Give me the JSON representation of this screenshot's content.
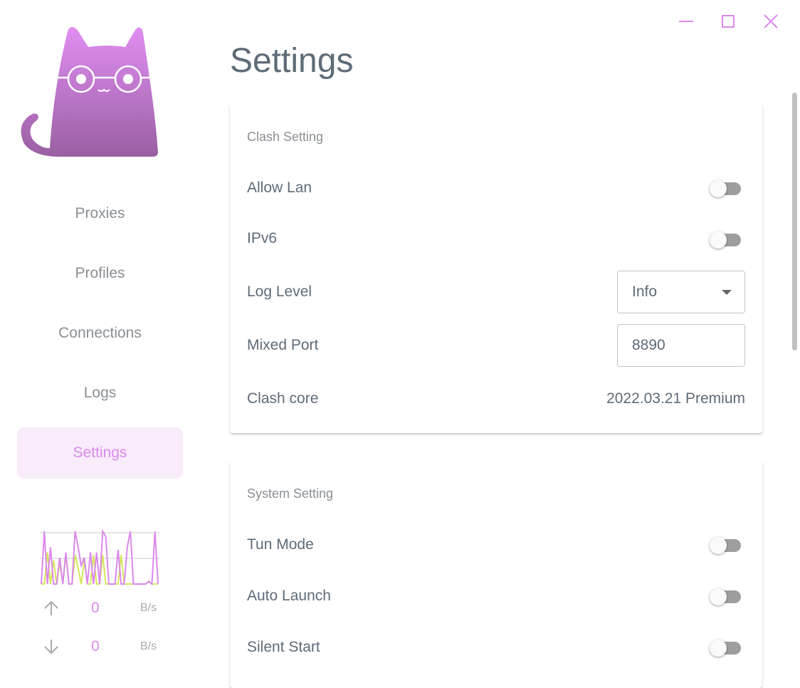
{
  "window": {
    "minimize_icon": "minimize-icon",
    "maximize_icon": "maximize-icon",
    "close_icon": "close-icon",
    "accent": "#db88ec"
  },
  "sidebar": {
    "items": [
      {
        "label": "Proxies"
      },
      {
        "label": "Profiles"
      },
      {
        "label": "Connections"
      },
      {
        "label": "Logs"
      },
      {
        "label": "Settings",
        "active": true
      }
    ],
    "traffic": {
      "upload": {
        "value": "0",
        "unit": "B/s"
      },
      "download": {
        "value": "0",
        "unit": "B/s"
      },
      "graph_upload": [
        0,
        0,
        60,
        0,
        45,
        0,
        40,
        0,
        55,
        0,
        0,
        55,
        30,
        0,
        45,
        0,
        0,
        55,
        0,
        0,
        55,
        0,
        0,
        0,
        0,
        0,
        55,
        0,
        0,
        0,
        0,
        0,
        0,
        0,
        0,
        5,
        0,
        0,
        0
      ],
      "graph_download": [
        0,
        100,
        0,
        70,
        0,
        0,
        50,
        0,
        60,
        0,
        0,
        100,
        70,
        35,
        50,
        0,
        60,
        0,
        60,
        0,
        100,
        90,
        0,
        0,
        0,
        65,
        0,
        0,
        70,
        100,
        0,
        0,
        0,
        0,
        0,
        5,
        0,
        100,
        0
      ]
    }
  },
  "page": {
    "title": "Settings"
  },
  "clash_setting": {
    "title": "Clash Setting",
    "allow_lan": {
      "label": "Allow Lan",
      "on": false
    },
    "ipv6": {
      "label": "IPv6",
      "on": false
    },
    "log_level": {
      "label": "Log Level",
      "value": "Info"
    },
    "mixed_port": {
      "label": "Mixed Port",
      "value": "8890"
    },
    "clash_core": {
      "label": "Clash core",
      "value": "2022.03.21 Premium"
    }
  },
  "system_setting": {
    "title": "System Setting",
    "tun_mode": {
      "label": "Tun Mode",
      "on": false
    },
    "auto_launch": {
      "label": "Auto Launch",
      "on": false
    },
    "silent_start": {
      "label": "Silent Start",
      "on": false
    }
  }
}
